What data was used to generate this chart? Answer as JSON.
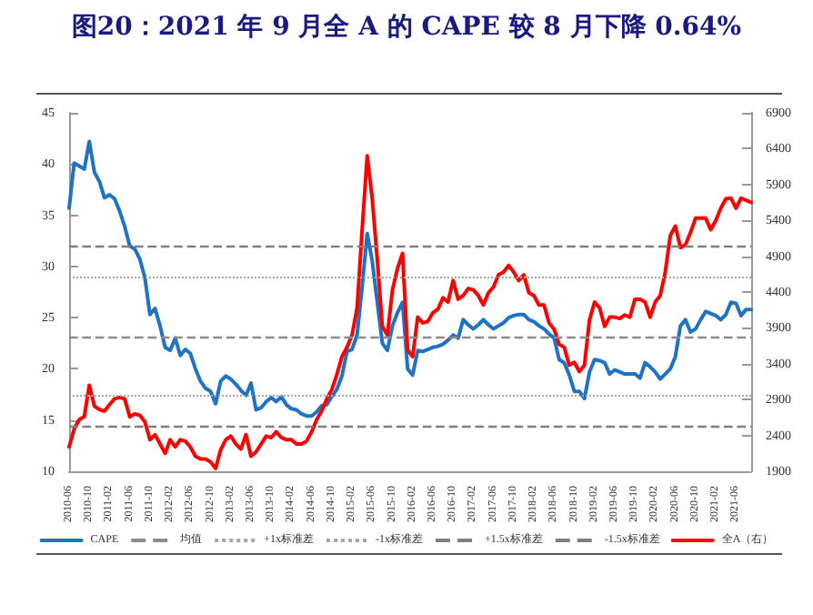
{
  "chart_data": {
    "type": "line",
    "title": "图20：2021 年 9 月全 A 的 CAPE 较 8 月下降 0.64%",
    "categories": [
      "2010-06",
      null,
      null,
      null,
      "2010-10",
      null,
      null,
      null,
      "2011-02",
      null,
      null,
      null,
      "2011-06",
      null,
      null,
      null,
      "2011-10",
      null,
      null,
      null,
      "2012-02",
      null,
      null,
      null,
      "2012-06",
      null,
      null,
      null,
      "2012-10",
      null,
      null,
      null,
      "2013-02",
      null,
      null,
      null,
      "2013-06",
      null,
      null,
      null,
      "2013-10",
      null,
      null,
      null,
      "2014-02",
      null,
      null,
      null,
      "2014-06",
      null,
      null,
      null,
      "2014-10",
      null,
      null,
      null,
      "2015-02",
      null,
      null,
      null,
      "2015-06",
      null,
      null,
      null,
      "2015-10",
      null,
      null,
      null,
      "2016-02",
      null,
      null,
      null,
      "2016-06",
      null,
      null,
      null,
      "2016-10",
      null,
      null,
      null,
      "2017-02",
      null,
      null,
      null,
      "2017-06",
      null,
      null,
      null,
      "2017-10",
      null,
      null,
      null,
      "2018-02",
      null,
      null,
      null,
      "2018-06",
      null,
      null,
      null,
      "2018-10",
      null,
      null,
      null,
      "2019-02",
      null,
      null,
      null,
      "2019-06",
      null,
      null,
      null,
      "2019-10",
      null,
      null,
      null,
      "2020-02",
      null,
      null,
      null,
      "2020-06",
      null,
      null,
      null,
      "2020-10",
      null,
      null,
      null,
      "2021-02",
      null,
      null,
      null,
      "2021-06",
      null,
      null,
      null
    ],
    "series": [
      {
        "name": "CAPE",
        "color": "#1f72c4",
        "values": [
          35.7,
          40.1,
          39.8,
          39.5,
          42.2,
          39.2,
          38.3,
          36.7,
          37.0,
          36.6,
          35.4,
          33.9,
          32.0,
          31.7,
          30.7,
          28.9,
          25.3,
          25.9,
          24.2,
          22.1,
          21.8,
          23.0,
          21.3,
          21.9,
          21.5,
          20.0,
          18.8,
          18.1,
          17.8,
          16.6,
          18.8,
          19.3,
          19.0,
          18.5,
          17.9,
          17.4,
          18.6,
          16.0,
          16.2,
          16.8,
          17.2,
          16.8,
          17.3,
          16.5,
          16.1,
          16.0,
          15.6,
          15.4,
          15.4,
          15.8,
          16.4,
          16.5,
          17.3,
          18.0,
          19.3,
          21.7,
          21.9,
          23.3,
          28.0,
          33.2,
          30.5,
          26.5,
          22.5,
          21.8,
          24.2,
          25.5,
          26.5,
          20.0,
          19.4,
          21.8,
          21.7,
          21.9,
          22.1,
          22.2,
          22.4,
          22.8,
          23.3,
          23.0,
          24.8,
          24.3,
          23.9,
          24.3,
          24.8,
          24.3,
          23.9,
          24.2,
          24.5,
          25.0,
          25.2,
          25.3,
          25.3,
          24.8,
          24.6,
          24.2,
          23.9,
          23.4,
          23.0,
          20.9,
          20.6,
          19.4,
          17.8,
          17.8,
          17.1,
          19.7,
          20.9,
          20.8,
          20.6,
          19.5,
          19.9,
          19.7,
          19.5,
          19.5,
          19.5,
          19.1,
          20.6,
          20.2,
          19.7,
          19.0,
          19.5,
          20.0,
          21.2,
          24.2,
          24.8,
          23.6,
          23.9,
          24.8,
          25.6,
          25.4,
          25.2,
          24.8,
          25.3,
          26.5,
          26.4,
          25.2,
          25.8,
          25.8
        ]
      },
      {
        "name": "全A（右）",
        "color": "#ff0000",
        "axis": "y2",
        "values": [
          2240,
          2490,
          2620,
          2660,
          3100,
          2810,
          2760,
          2740,
          2830,
          2910,
          2930,
          2910,
          2660,
          2700,
          2680,
          2590,
          2340,
          2410,
          2280,
          2150,
          2340,
          2240,
          2340,
          2320,
          2240,
          2110,
          2070,
          2070,
          2030,
          1940,
          2200,
          2340,
          2390,
          2280,
          2210,
          2410,
          2110,
          2170,
          2280,
          2390,
          2370,
          2450,
          2370,
          2340,
          2340,
          2280,
          2280,
          2320,
          2450,
          2620,
          2740,
          2910,
          3040,
          3250,
          3500,
          3630,
          3800,
          4180,
          5270,
          6300,
          5700,
          4850,
          3920,
          3800,
          4430,
          4730,
          4940,
          3590,
          3500,
          4050,
          3970,
          3990,
          4110,
          4160,
          4320,
          4260,
          4560,
          4300,
          4350,
          4450,
          4430,
          4350,
          4220,
          4390,
          4470,
          4640,
          4680,
          4770,
          4680,
          4560,
          4640,
          4390,
          4350,
          4220,
          4220,
          3970,
          3880,
          3670,
          3630,
          3380,
          3420,
          3290,
          3380,
          4010,
          4260,
          4180,
          3920,
          4050,
          4050,
          4030,
          4080,
          4050,
          4300,
          4300,
          4260,
          4050,
          4260,
          4350,
          4680,
          5190,
          5320,
          5020,
          5060,
          5230,
          5430,
          5430,
          5430,
          5270,
          5400,
          5570,
          5700,
          5710,
          5570,
          5710,
          5680,
          5650
        ]
      }
    ],
    "ref_lines": [
      {
        "axis": "y",
        "value": 23.1,
        "label": "均值",
        "color": "#8c8c8c",
        "line_style": "dashed"
      },
      {
        "axis": "y",
        "value": 28.9,
        "label": "+1x标准差",
        "color": "#a6a6a6",
        "line_style": "dotted"
      },
      {
        "axis": "y",
        "value": 17.4,
        "label": "-1x标准差",
        "color": "#a6a6a6",
        "line_style": "dotted"
      },
      {
        "axis": "y",
        "value": 31.9,
        "label": "+1.5x标准差",
        "color": "#808080",
        "line_style": "dashed"
      },
      {
        "axis": "y",
        "value": 14.4,
        "label": "-1.5x标准差",
        "color": "#808080",
        "line_style": "dashed"
      }
    ],
    "ylim": [
      10,
      45
    ],
    "yticks": [
      10,
      15,
      20,
      25,
      30,
      35,
      40,
      45
    ],
    "y2lim": [
      1900,
      6900
    ],
    "y2ticks": [
      1900,
      2400,
      2900,
      3400,
      3900,
      4400,
      4900,
      5400,
      5900,
      6400,
      6900
    ],
    "grid": false,
    "legend": "bottom",
    "marker": "none",
    "line_style": "solid"
  }
}
